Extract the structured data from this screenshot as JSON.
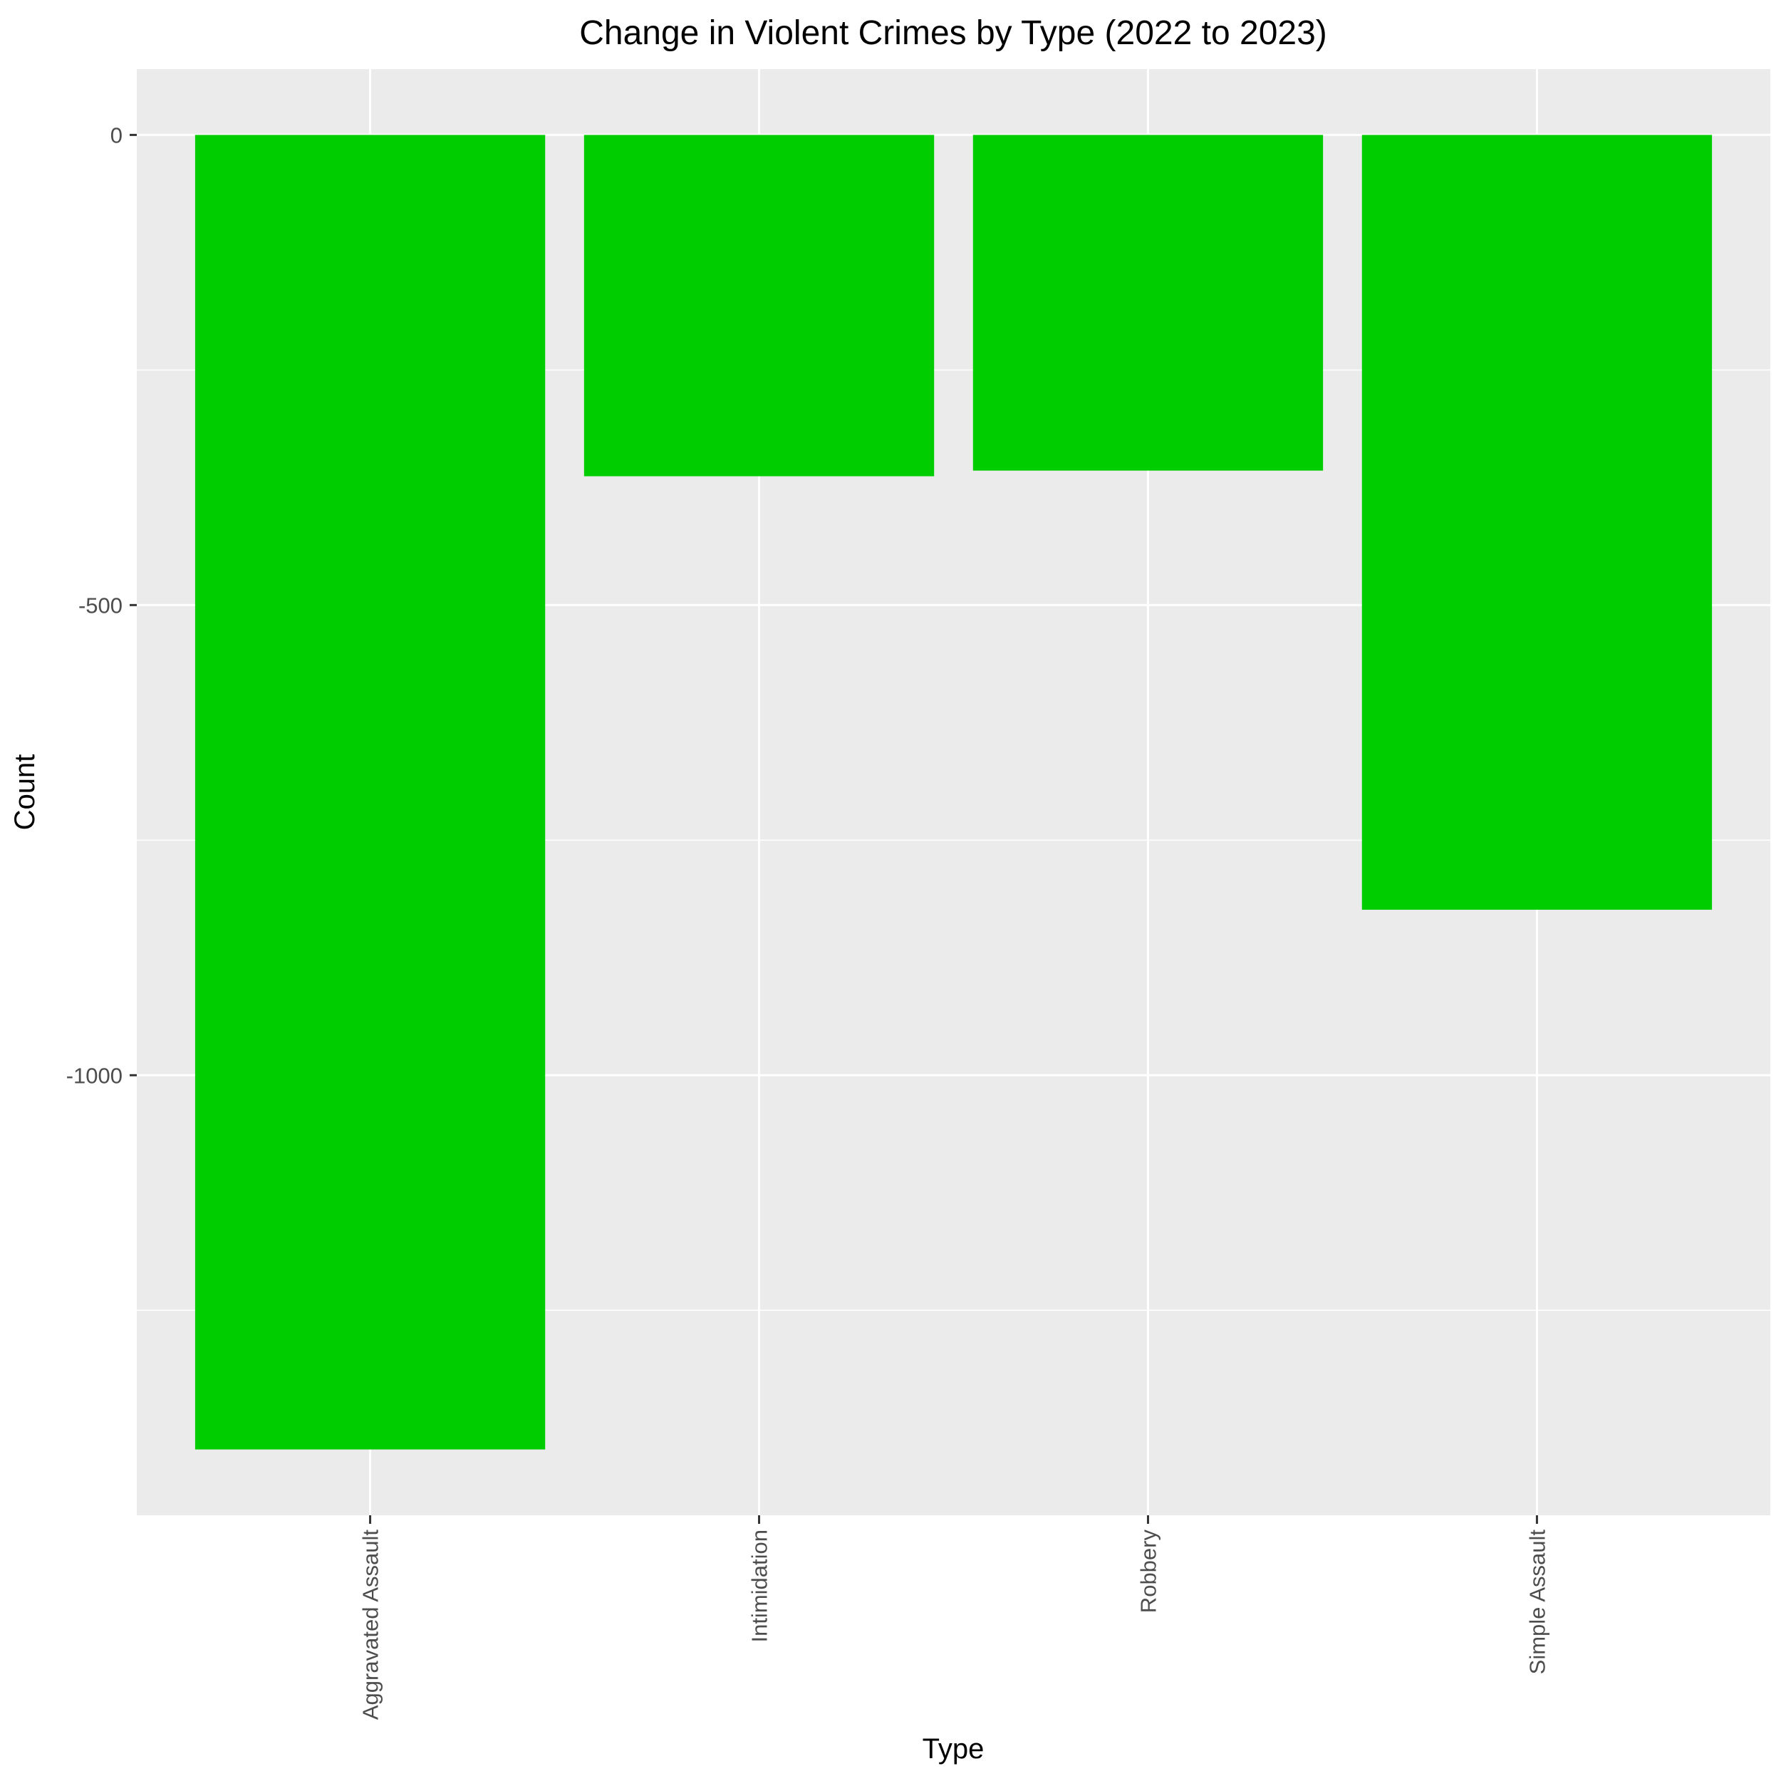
{
  "colors": {
    "panel_background": "#ebebeb",
    "grid_major": "#ffffff",
    "grid_minor": "#f5f5f5",
    "bar_fill": "#00cd00",
    "tick_mark": "#333333",
    "tick_label": "#4d4d4d",
    "text": "#000000"
  },
  "chart_data": {
    "type": "bar",
    "title": "Change in Violent Crimes by Type (2022 to 2023)",
    "xlabel": "Type",
    "ylabel": "Count",
    "categories": [
      "Aggravated Assault",
      "Intimidation",
      "Robbery",
      "Simple Assault"
    ],
    "values": [
      -1398,
      -363,
      -357,
      -824
    ],
    "ylim": [
      -1468,
      70
    ],
    "yticks": [
      0,
      -500,
      -1000
    ],
    "ytick_labels": [
      "0",
      "-500",
      "-1000"
    ],
    "x_tick_label_rotation": "vertical",
    "grid": true,
    "legend": "none"
  }
}
